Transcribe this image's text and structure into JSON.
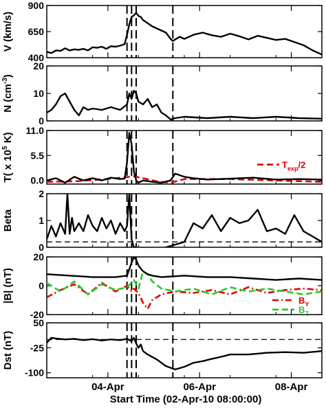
{
  "colors": {
    "ink": "#000000",
    "red": "#dd0000",
    "green": "#22cc22"
  },
  "chart_data": [
    {
      "type": "line",
      "ylabel_main": "V",
      "ylabel_unit": "(km/s)",
      "ylim": [
        400,
        900
      ],
      "yticks": [
        400,
        650,
        900
      ],
      "series": [
        {
          "x": [
            0,
            0.1,
            0.2,
            0.3,
            0.4,
            0.5,
            0.6,
            0.7,
            0.8,
            0.9,
            1.0,
            1.1,
            1.2,
            1.3,
            1.4,
            1.5,
            1.6,
            1.7,
            1.75,
            1.8,
            1.85,
            1.9,
            1.95,
            2.0,
            2.05,
            2.1,
            2.2,
            2.3,
            2.4,
            2.5,
            2.6,
            2.7,
            2.75,
            2.8,
            2.9,
            3.0,
            3.2,
            3.4,
            3.6,
            3.8,
            4.0,
            4.2,
            4.4,
            4.6,
            4.8,
            5.0,
            5.2,
            5.4,
            5.6,
            5.8,
            6.0
          ],
          "values": [
            455,
            445,
            470,
            465,
            490,
            470,
            480,
            475,
            485,
            470,
            500,
            495,
            505,
            485,
            510,
            505,
            515,
            530,
            620,
            720,
            790,
            805,
            830,
            800,
            790,
            760,
            730,
            700,
            680,
            660,
            640,
            580,
            560,
            575,
            600,
            580,
            620,
            640,
            615,
            600,
            630,
            605,
            575,
            610,
            590,
            570,
            580,
            550,
            520,
            470,
            430
          ]
        }
      ]
    },
    {
      "type": "line",
      "ylabel_main": "N",
      "ylabel_unit": "(cm",
      "ylabel_sup": "-3",
      "ylabel_tail": ")",
      "ylim": [
        0,
        20
      ],
      "yticks": [
        0,
        10,
        20
      ],
      "series": [
        {
          "x": [
            0,
            0.1,
            0.2,
            0.3,
            0.4,
            0.5,
            0.6,
            0.7,
            0.8,
            0.9,
            1.0,
            1.2,
            1.4,
            1.6,
            1.75,
            1.8,
            1.85,
            1.9,
            1.95,
            2.0,
            2.1,
            2.2,
            2.3,
            2.4,
            2.5,
            2.6,
            2.7,
            2.8,
            3.0,
            3.5,
            4.0,
            4.5,
            5.0,
            5.5,
            6.0
          ],
          "values": [
            3,
            4,
            6,
            9,
            10,
            7,
            4,
            2,
            5,
            4,
            4.5,
            4,
            5,
            4,
            6,
            10,
            8,
            11,
            10,
            7,
            6,
            8,
            5,
            6,
            3,
            2,
            0.5,
            1,
            1.5,
            1,
            1.5,
            1,
            1.5,
            1,
            0.8
          ]
        }
      ]
    },
    {
      "type": "line",
      "ylabel_main": "T( x 10",
      "ylabel_sup": "5",
      "ylabel_tail": " K)",
      "ylim": [
        -0.8,
        11
      ],
      "yticks": [
        0.0,
        5.5,
        11.0
      ],
      "ytick_labels": [
        "0.0",
        "5.5",
        "11.0"
      ],
      "legend": "T",
      "legend_sub": "exp",
      "legend_tail": "/2",
      "series": [
        {
          "name": "T",
          "x": [
            0,
            0.2,
            0.4,
            0.6,
            0.8,
            1.0,
            1.2,
            1.4,
            1.6,
            1.7,
            1.75,
            1.8,
            1.85,
            1.9,
            1.95,
            2.0,
            2.1,
            2.3,
            2.5,
            2.7,
            2.8,
            3.0,
            3.2,
            3.5,
            4.0,
            4.5,
            5.0,
            5.5,
            6.0
          ],
          "values": [
            0,
            0.5,
            -0.5,
            0.8,
            0,
            0.5,
            0,
            0.6,
            0.3,
            0.4,
            4,
            10.5,
            8,
            2,
            0,
            -0.5,
            0,
            -0.3,
            -0.5,
            0,
            1.5,
            0.8,
            0.5,
            0.2,
            0.4,
            0.6,
            0.2,
            0.3,
            0.2
          ]
        },
        {
          "name": "T_exp/2",
          "style": "dashed",
          "color": "red",
          "x": [
            0,
            0.6,
            1.2,
            1.7,
            1.9,
            2.1,
            2.4,
            2.7,
            3.0,
            4.0,
            5.0,
            6.0
          ],
          "values": [
            -0.3,
            -0.2,
            0.2,
            0.7,
            0.9,
            0.5,
            -0.2,
            -0.5,
            0.3,
            0.3,
            0,
            -0.3
          ]
        }
      ]
    },
    {
      "type": "line",
      "ylabel_main": "Beta",
      "ylim": [
        0,
        2
      ],
      "yticks": [
        0,
        1,
        2
      ],
      "hline": 0.2,
      "series": [
        {
          "x": [
            0,
            0.1,
            0.2,
            0.3,
            0.4,
            0.45,
            0.5,
            0.55,
            0.6,
            0.7,
            0.8,
            0.9,
            1.0,
            1.1,
            1.2,
            1.3,
            1.4,
            1.5,
            1.6,
            1.7,
            1.75,
            1.8,
            1.85,
            1.9,
            1.95,
            2.0,
            2.5,
            2.6,
            2.7,
            3.0,
            3.2,
            3.4,
            3.6,
            3.8,
            4.0,
            4.2,
            4.4,
            4.6,
            4.8,
            5.0,
            5.2,
            5.4,
            5.6,
            5.8,
            6.0
          ],
          "values": [
            0.3,
            0.8,
            0.4,
            0.9,
            0.5,
            2.0,
            0.5,
            1.1,
            0.6,
            0.9,
            0.6,
            1.2,
            0.8,
            0.6,
            1.1,
            0.7,
            1.0,
            0.5,
            0.9,
            0.6,
            0.8,
            2.0,
            0.3,
            0,
            0,
            -0.05,
            -0.05,
            0,
            0.05,
            0.2,
            0.9,
            0.7,
            1.2,
            0.6,
            1.1,
            0.9,
            1.0,
            1.4,
            0.6,
            0.7,
            0.5,
            1.2,
            0.6,
            0.4,
            0.2
          ]
        }
      ]
    },
    {
      "type": "line",
      "ylabel_main": "|B| (nT)",
      "ylim": [
        -20,
        20
      ],
      "yticks": [
        -20,
        0,
        20
      ],
      "legend_by": "B",
      "legend_by_sub": "Y",
      "legend_bz": "B",
      "legend_bz_sub": "Z",
      "series": [
        {
          "name": "|B|",
          "x": [
            0,
            0.5,
            1.0,
            1.5,
            1.75,
            1.85,
            1.9,
            1.95,
            2.0,
            2.1,
            2.2,
            2.3,
            2.5,
            3.0,
            3.5,
            4.0,
            4.5,
            5.0,
            5.5,
            6.0
          ],
          "values": [
            8,
            7,
            6,
            6,
            7,
            16,
            20,
            18,
            14,
            10,
            8,
            7,
            6,
            7,
            6,
            6,
            5,
            4,
            5,
            4
          ]
        },
        {
          "name": "B_Y",
          "style": "dashdot",
          "color": "red",
          "x": [
            0,
            0.3,
            0.6,
            0.9,
            1.2,
            1.5,
            1.75,
            1.85,
            1.9,
            2.0,
            2.1,
            2.2,
            2.3,
            2.5,
            2.8,
            3.2,
            3.6,
            4.0,
            4.4,
            4.8,
            5.2,
            5.6,
            6.0
          ],
          "values": [
            -8,
            -3,
            1,
            -6,
            2,
            -4,
            0,
            -4,
            -2,
            -5,
            -12,
            -16,
            -10,
            -6,
            -4,
            -5,
            -3,
            -6,
            -1,
            -5,
            -3,
            -2,
            -3
          ]
        },
        {
          "name": "B_Z",
          "style": "dashed",
          "color": "green",
          "x": [
            0,
            0.3,
            0.6,
            0.9,
            1.2,
            1.5,
            1.75,
            1.85,
            1.9,
            2.0,
            2.1,
            2.2,
            2.3,
            2.5,
            2.8,
            3.2,
            3.6,
            4.0,
            4.4,
            4.8,
            5.2,
            5.6,
            6.0
          ],
          "values": [
            2,
            -4,
            3,
            -6,
            1,
            -3,
            -1,
            2,
            4,
            -2,
            10,
            8,
            3,
            -2,
            -4,
            -2,
            -6,
            -1,
            -4,
            -2,
            -4,
            -6,
            -4
          ]
        }
      ]
    },
    {
      "type": "line",
      "ylabel_main": "Dst (nT)",
      "ylim": [
        -115,
        50
      ],
      "yticks": [
        -100,
        -25,
        50
      ],
      "hline": 0,
      "series": [
        {
          "x": [
            0,
            0.1,
            0.2,
            0.4,
            0.6,
            0.8,
            1.0,
            1.2,
            1.4,
            1.6,
            1.75,
            1.85,
            1.9,
            1.95,
            2.0,
            2.05,
            2.1,
            2.2,
            2.4,
            2.6,
            2.8,
            3.0,
            3.2,
            3.4,
            3.6,
            3.8,
            4.0,
            4.4,
            4.8,
            5.2,
            5.6,
            6.0
          ],
          "values": [
            -10,
            5,
            3,
            0,
            2,
            -2,
            1,
            -3,
            0,
            -2,
            2,
            -5,
            5,
            -12,
            -25,
            -15,
            -35,
            -45,
            -60,
            -80,
            -90,
            -82,
            -70,
            -65,
            -58,
            -52,
            -45,
            -45,
            -40,
            -38,
            -40,
            -35
          ]
        }
      ]
    }
  ],
  "x_axis": {
    "xlim": [
      0,
      6
    ],
    "tick_labels": [
      "04-Apr",
      "06-Apr",
      "08-Apr"
    ],
    "tick_positions": [
      1.333,
      3.333,
      5.333
    ],
    "title": "Start Time (02-Apr-10 08:00:00)"
  },
  "vlines": [
    1.75,
    1.85,
    1.95,
    2.75
  ]
}
